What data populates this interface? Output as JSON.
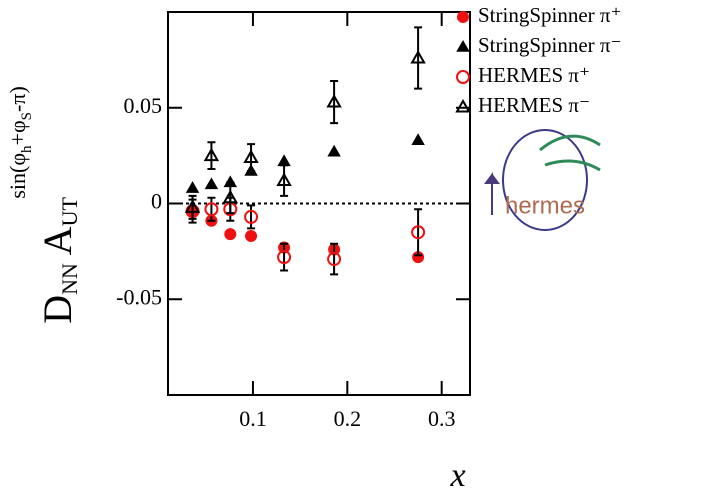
{
  "chart_data": {
    "type": "scatter",
    "x_label": "x",
    "y_label_parts": [
      "D",
      "NN",
      " A",
      "UT",
      "sin(φ",
      "h",
      "+φ",
      "S",
      "-π)"
    ],
    "logo": "hermes",
    "xlim": [
      0.01,
      0.33
    ],
    "ylim": [
      -0.1,
      0.1
    ],
    "xticks": [
      0.1,
      0.2,
      0.3
    ],
    "yticks": [
      -0.05,
      0,
      0.05
    ],
    "reference_line": 0,
    "x": [
      0.036,
      0.056,
      0.076,
      0.098,
      0.133,
      0.186,
      0.275
    ],
    "series": [
      {
        "name": "StringSpinner π⁺",
        "color": "#ee1111",
        "marker": "circle",
        "filled": true,
        "values": [
          -0.004,
          -0.009,
          -0.016,
          -0.017,
          -0.023,
          -0.024,
          -0.028
        ]
      },
      {
        "name": "StringSpinner π⁻",
        "color": "#000000",
        "marker": "triangle",
        "filled": true,
        "values": [
          0.008,
          0.01,
          0.011,
          0.017,
          0.022,
          0.027,
          0.033
        ]
      },
      {
        "name": "HERMES π⁺",
        "color": "#ee1111",
        "marker": "circle",
        "filled": false,
        "values": [
          -0.004,
          -0.003,
          -0.003,
          -0.007,
          -0.028,
          -0.029,
          -0.015
        ],
        "errors": [
          0.006,
          0.006,
          0.006,
          0.006,
          0.007,
          0.008,
          0.012
        ]
      },
      {
        "name": "HERMES π⁻",
        "color": "#000000",
        "marker": "triangle",
        "filled": false,
        "values": [
          -0.002,
          0.025,
          0.003,
          0.024,
          0.012,
          0.053,
          0.076
        ],
        "errors": [
          0.006,
          0.007,
          0.008,
          0.007,
          0.008,
          0.011,
          0.016
        ]
      }
    ]
  }
}
